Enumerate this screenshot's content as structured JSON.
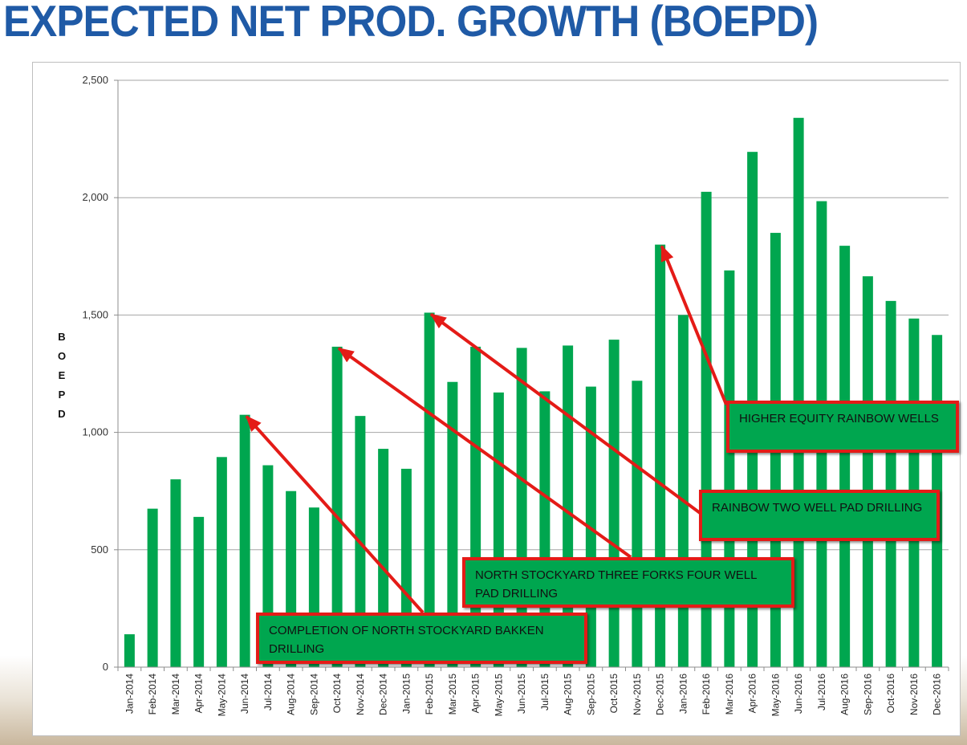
{
  "page": {
    "title": "EXPECTED NET PROD. GROWTH (BOEPD)"
  },
  "colors": {
    "title": "#1f5aa6",
    "bar": "#00a64f",
    "arrow": "#e41b17",
    "callout_fill": "#00a64f",
    "callout_border": "#e41b17"
  },
  "chart_data": {
    "type": "bar",
    "title": "",
    "xlabel": "",
    "ylabel": "BOEPD",
    "ylim": [
      0,
      2500
    ],
    "yticks": [
      0,
      500,
      1000,
      1500,
      2000,
      2500
    ],
    "ytick_labels": [
      "0",
      "500",
      "1,000",
      "1,500",
      "2,000",
      "2,500"
    ],
    "grid": true,
    "legend": "none",
    "categories": [
      "Jan-2014",
      "Feb-2014",
      "Mar-2014",
      "Apr-2014",
      "May-2014",
      "Jun-2014",
      "Jul-2014",
      "Aug-2014",
      "Sep-2014",
      "Oct-2014",
      "Nov-2014",
      "Dec-2014",
      "Jan-2015",
      "Feb-2015",
      "Mar-2015",
      "Apr-2015",
      "May-2015",
      "Jun-2015",
      "Jul-2015",
      "Aug-2015",
      "Sep-2015",
      "Oct-2015",
      "Nov-2015",
      "Dec-2015",
      "Jan-2016",
      "Feb-2016",
      "Mar-2016",
      "Apr-2016",
      "May-2016",
      "Jun-2016",
      "Jul-2016",
      "Aug-2016",
      "Sep-2016",
      "Oct-2016",
      "Nov-2016",
      "Dec-2016"
    ],
    "values": [
      140,
      675,
      800,
      640,
      895,
      1075,
      860,
      750,
      680,
      1365,
      1070,
      930,
      845,
      1510,
      1215,
      1365,
      1170,
      1360,
      1175,
      1370,
      1195,
      1395,
      1220,
      1800,
      1500,
      2025,
      1690,
      2195,
      1850,
      2340,
      1985,
      1795,
      1665,
      1560,
      1485,
      1415
    ],
    "annotations": [
      {
        "text": "COMPLETION OF NORTH STOCKYARD BAKKEN DRILLING",
        "points_to": "Jun-2014"
      },
      {
        "text": "NORTH STOCKYARD THREE FORKS FOUR WELL PAD DRILLING",
        "points_to": "Oct-2014"
      },
      {
        "text": "RAINBOW TWO WELL PAD DRILLING",
        "points_to": "Feb-2015"
      },
      {
        "text": "HIGHER EQUITY RAINBOW WELLS",
        "points_to": "Dec-2015"
      }
    ]
  }
}
